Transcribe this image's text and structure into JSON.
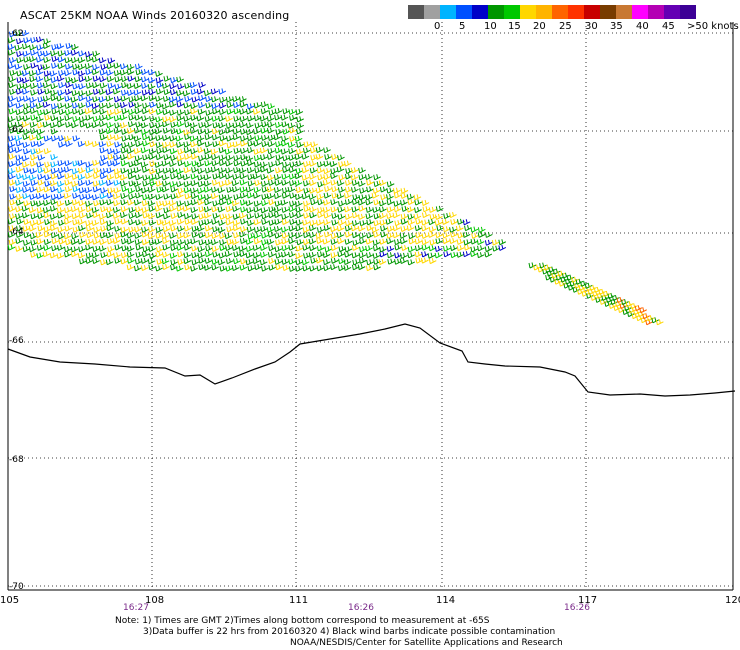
{
  "title": "ASCAT 25KM NOAA Winds 20160320 ascending",
  "legend": {
    "colors": [
      "#555555",
      "#a0a0a0",
      "#00b4ff",
      "#0050ff",
      "#0000c8",
      "#009600",
      "#00c800",
      "#ffd700",
      "#ffb400",
      "#ff6400",
      "#ff3200",
      "#c80000",
      "#783c00",
      "#c87832",
      "#ff00ff",
      "#b400b4",
      "#6400b4",
      "#3c0096"
    ],
    "labels": [
      "0",
      "5",
      "10",
      "15",
      "20",
      "25",
      "30",
      "35",
      "40",
      "45",
      ">50 knots"
    ]
  },
  "map": {
    "lat_labels": [
      "-62",
      "-62",
      "-64",
      "-66",
      "-68",
      "-70"
    ],
    "lon_labels": [
      "105",
      "108",
      "111",
      "114",
      "117",
      "120"
    ],
    "times": [
      "16:27",
      "16:26",
      "16:26"
    ]
  },
  "notes": {
    "line1": "Note: 1) Times are GMT 2)Times along bottom correspond to measurement at -65S",
    "line2": "3)Data buffer is 22 hrs from 20160320 4) Black wind barbs indicate possible contamination",
    "line3": "NOAA/NESDIS/Center for Satellite Applications and Research"
  }
}
